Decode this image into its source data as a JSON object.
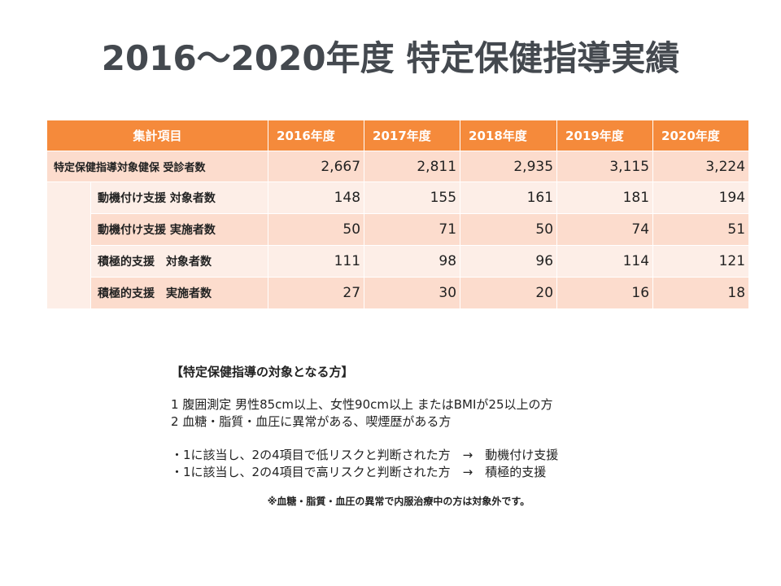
{
  "title": "2016～2020年度 特定保健指導実績",
  "table": {
    "headers": [
      "集計項目",
      "2016年度",
      "2017年度",
      "2018年度",
      "2019年度",
      "2020年度"
    ],
    "rows": [
      {
        "label": "特定保健指導対象健保 受診者数",
        "values": [
          "2,667",
          "2,811",
          "2,935",
          "3,115",
          "3,224"
        ]
      },
      {
        "label": "動機付け支援 対象者数",
        "values": [
          "148",
          "155",
          "161",
          "181",
          "194"
        ]
      },
      {
        "label": "動機付け支援 実施者数",
        "values": [
          "50",
          "71",
          "50",
          "74",
          "51"
        ]
      },
      {
        "label": "積極的支援　対象者数",
        "values": [
          "111",
          "98",
          "96",
          "114",
          "121"
        ]
      },
      {
        "label": "積極的支援　実施者数",
        "values": [
          "27",
          "30",
          "20",
          "16",
          "18"
        ]
      }
    ]
  },
  "notes": {
    "heading": "【特定保健指導の対象となる方】",
    "criteria": [
      "1 腹囲測定 男性85cm以上、女性90cm以上 またはBMIが25以上の方",
      "2 血糖・脂質・血圧に異常がある、喫煙歴がある方"
    ],
    "classification": [
      "・1に該当し、2の4項目で低リスクと判断された方　→　動機付け支援",
      "・1に該当し、2の4項目で高リスクと判断された方　→　積極的支援"
    ],
    "footnote": "※血糖・脂質・血圧の異常で内服治療中の方は対象外です。"
  },
  "colors": {
    "header_bg": "#f58a3b",
    "row_dark": "#fcdccd",
    "row_light": "#fdeee7",
    "title": "#44494f"
  }
}
